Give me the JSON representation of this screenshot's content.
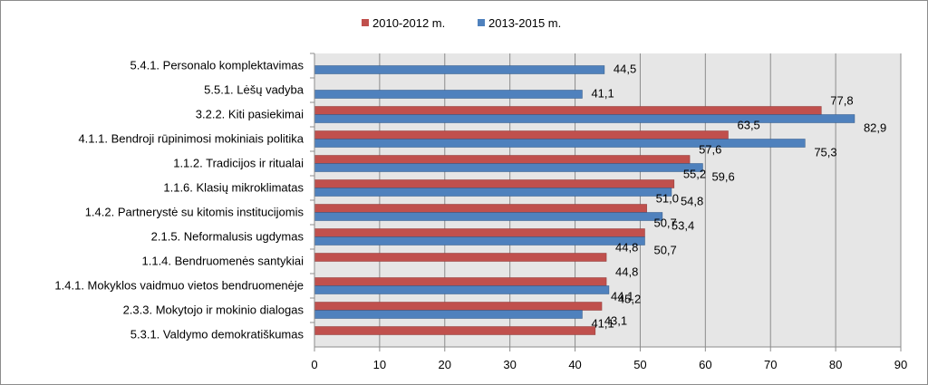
{
  "chart_data": {
    "type": "bar",
    "orientation": "horizontal",
    "categories": [
      "5.4.1. Personalo komplektavimas",
      "5.5.1. Lėšų vadyba",
      "3.2.2. Kiti pasiekimai",
      "4.1.1. Bendroji rūpinimosi mokiniais politika",
      "1.1.2. Tradicijos ir ritualai",
      "1.1.6. Klasių mikroklimatas",
      "1.4.2. Partnerystė su kitomis institucijomis",
      "2.1.5. Neformalusis ugdymas",
      "1.1.4. Bendruomenės santykiai",
      "1.4.1. Mokyklos vaidmuo vietos bendruomenėje",
      "2.3.3. Mokytojo ir mokinio dialogas",
      "5.3.1. Valdymo demokratiškumas"
    ],
    "series": [
      {
        "name": "2010-2012 m.",
        "color": "#c0504d",
        "values": [
          null,
          null,
          77.8,
          63.5,
          57.6,
          55.2,
          51.0,
          50.7,
          44.8,
          44.8,
          44.1,
          43.1
        ],
        "labels": [
          null,
          null,
          "77,8",
          "63,5",
          "57,6",
          "55,2",
          "51,0",
          "50,7",
          "44,8",
          "44,8",
          "44,1",
          "43,1"
        ]
      },
      {
        "name": "2013-2015 m.",
        "color": "#4f81bd",
        "values": [
          44.5,
          41.1,
          82.9,
          75.3,
          59.6,
          54.8,
          53.4,
          50.7,
          null,
          45.2,
          41.1,
          null
        ],
        "labels": [
          "44,5",
          "41,1",
          "82,9",
          "75,3",
          "59,6",
          "54,8",
          "53,4",
          "50,7",
          null,
          "45,2",
          "41,1",
          null
        ]
      }
    ],
    "xlim": [
      0,
      90
    ],
    "xticks": [
      "0",
      "10",
      "20",
      "30",
      "40",
      "50",
      "60",
      "70",
      "80",
      "90"
    ],
    "grid": true,
    "legend_position": "top-center",
    "plot_background": "#e6e6e6"
  }
}
